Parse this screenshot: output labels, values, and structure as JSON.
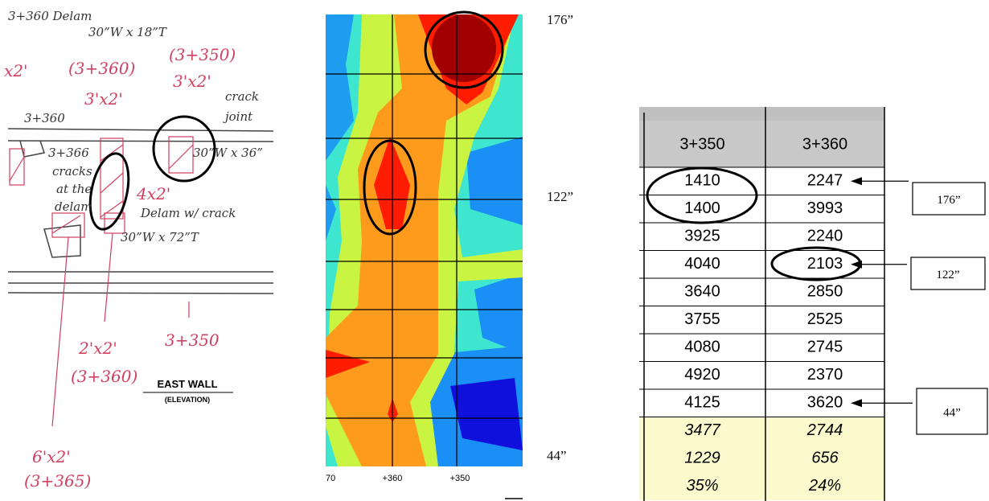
{
  "sketch": {
    "black_notes": [
      "3+360 Delam",
      "30”W x 18”T",
      "3+360",
      "crack",
      "joint",
      "3+366",
      "cracks",
      "at the",
      "delam",
      "30”W x 36”",
      "Delam w/ crack",
      "30”W x 72”T"
    ],
    "red_notes": [
      "x2'",
      "(3+360)",
      "(3+350)",
      "3'x2'",
      "3'x2'",
      "2'x2'",
      "(3+360)",
      "3+350",
      "6'x2'",
      "(3+365)",
      "4x2'"
    ],
    "caption": {
      "title": "EAST WALL",
      "subtitle": "(ELEVATION)"
    }
  },
  "contour": {
    "y_labels": [
      "176”",
      "122”",
      "44”"
    ],
    "x_labels": [
      "70",
      "+360",
      "+350"
    ]
  },
  "table": {
    "header": [
      "3+350",
      "3+360"
    ],
    "rows": [
      [
        "1410",
        "2247"
      ],
      [
        "1400",
        "3993"
      ],
      [
        "3925",
        "2240"
      ],
      [
        "4040",
        "2103"
      ],
      [
        "3640",
        "2850"
      ],
      [
        "3755",
        "2525"
      ],
      [
        "4080",
        "2745"
      ],
      [
        "4920",
        "2370"
      ],
      [
        "4125",
        "3620"
      ]
    ],
    "summary_rows": [
      [
        "3477",
        "2744"
      ],
      [
        "1229",
        "656"
      ],
      [
        "35%",
        "24%"
      ]
    ],
    "callouts": [
      "176”",
      "122”",
      "44”"
    ]
  }
}
